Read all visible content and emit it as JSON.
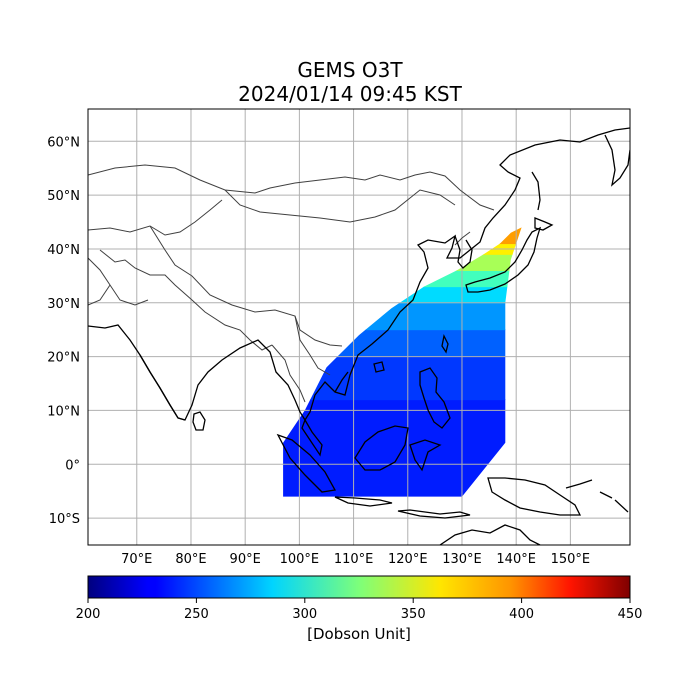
{
  "figure": {
    "title_line1": "GEMS O3T",
    "title_line2": "2024/01/14 09:45 KST"
  },
  "map": {
    "lon_range": [
      61,
      161
    ],
    "lat_range": [
      -15,
      66
    ],
    "lon_ticks": [
      {
        "value": 70,
        "label": "70°E"
      },
      {
        "value": 80,
        "label": "80°E"
      },
      {
        "value": 90,
        "label": "90°E"
      },
      {
        "value": 100,
        "label": "100°E"
      },
      {
        "value": 110,
        "label": "110°E"
      },
      {
        "value": 120,
        "label": "120°E"
      },
      {
        "value": 130,
        "label": "130°E"
      },
      {
        "value": 140,
        "label": "140°E"
      },
      {
        "value": 150,
        "label": "150°E"
      }
    ],
    "lat_ticks": [
      {
        "value": 60,
        "label": "60°N"
      },
      {
        "value": 50,
        "label": "50°N"
      },
      {
        "value": 40,
        "label": "40°N"
      },
      {
        "value": 30,
        "label": "30°N"
      },
      {
        "value": 20,
        "label": "20°N"
      },
      {
        "value": 10,
        "label": "10°N"
      },
      {
        "value": 0,
        "label": "0°"
      },
      {
        "value": -10,
        "label": "10°S"
      }
    ],
    "grid": true,
    "coastline_color": "#000000",
    "border_color": "#404040"
  },
  "colorbar": {
    "min": 200,
    "max": 450,
    "ticks": [
      "200",
      "250",
      "300",
      "350",
      "400",
      "450"
    ],
    "label": "[Dobson Unit]",
    "colormap": "jet"
  },
  "ozone_field": {
    "variable": "O3T",
    "unit": "DU",
    "swath_outline_lonlat": [
      [
        97,
        -6
      ],
      [
        97,
        4
      ],
      [
        101,
        10
      ],
      [
        105,
        18
      ],
      [
        111,
        24
      ],
      [
        117,
        29
      ],
      [
        123,
        33
      ],
      [
        129,
        36
      ],
      [
        134,
        39
      ],
      [
        137,
        41
      ],
      [
        139,
        43
      ],
      [
        141,
        44
      ],
      [
        139,
        38
      ],
      [
        138,
        30
      ],
      [
        138,
        20
      ],
      [
        138,
        10
      ],
      [
        138,
        4
      ],
      [
        130,
        -6
      ]
    ],
    "latitude_bands": [
      {
        "lat_from": -6,
        "lat_to": 12,
        "value": 238
      },
      {
        "lat_from": 12,
        "lat_to": 20,
        "value": 245
      },
      {
        "lat_from": 20,
        "lat_to": 25,
        "value": 255
      },
      {
        "lat_from": 25,
        "lat_to": 30,
        "value": 268
      },
      {
        "lat_from": 30,
        "lat_to": 33,
        "value": 285
      },
      {
        "lat_from": 33,
        "lat_to": 36,
        "value": 310
      },
      {
        "lat_from": 36,
        "lat_to": 39,
        "value": 335
      },
      {
        "lat_from": 39,
        "lat_to": 41,
        "value": 360
      },
      {
        "lat_from": 41,
        "lat_to": 45,
        "value": 380
      }
    ]
  }
}
